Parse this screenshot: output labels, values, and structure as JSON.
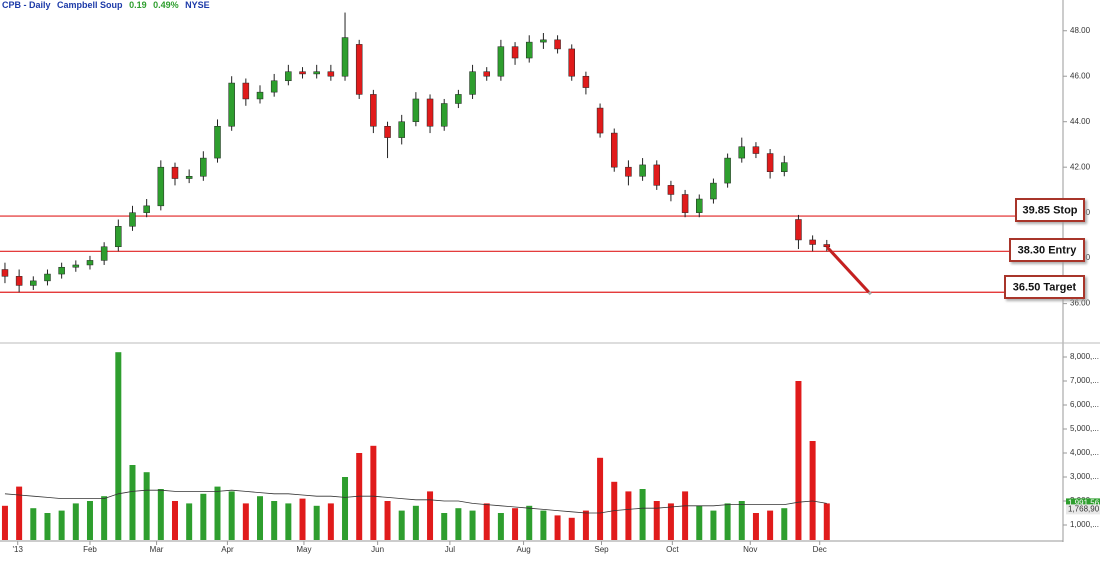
{
  "chart_data": {
    "type": "candlestick",
    "title": {
      "symbol": "CPB - Daily",
      "name": "Campbell Soup",
      "change": "0.19",
      "change_pct": "0.49%",
      "exchange": "NYSE"
    },
    "xlim": [
      -0.35,
      74.6
    ],
    "xticks": [
      {
        "value": 0.9,
        "label": "'13"
      },
      {
        "value": 6,
        "label": "Feb"
      },
      {
        "value": 10.7,
        "label": "Mar"
      },
      {
        "value": 15.7,
        "label": "Apr"
      },
      {
        "value": 21.1,
        "label": "May"
      },
      {
        "value": 26.3,
        "label": "Jun"
      },
      {
        "value": 31.4,
        "label": "Jul"
      },
      {
        "value": 36.6,
        "label": "Aug"
      },
      {
        "value": 42.1,
        "label": "Sep"
      },
      {
        "value": 47.1,
        "label": "Oct"
      },
      {
        "value": 52.6,
        "label": "Nov"
      },
      {
        "value": 57.5,
        "label": "Dec"
      }
    ],
    "ylim": [
      34.4,
      49.0
    ],
    "yticks": [
      {
        "value": 36,
        "label": "36.00"
      },
      {
        "value": 38,
        "label": "38.00"
      },
      {
        "value": 40,
        "label": "40.00"
      },
      {
        "value": 42,
        "label": "42.00"
      },
      {
        "value": 44,
        "label": "44.00"
      },
      {
        "value": 46,
        "label": "46.00"
      },
      {
        "value": 48,
        "label": "48.00"
      }
    ],
    "up_color": "#2e9e2e",
    "down_color": "#e01b1b",
    "open": [
      37.5,
      37.2,
      36.8,
      37.0,
      37.3,
      37.6,
      37.7,
      37.9,
      38.5,
      39.4,
      40.0,
      40.3,
      42.0,
      41.5,
      41.6,
      42.4,
      43.8,
      45.7,
      45.0,
      45.3,
      45.8,
      46.2,
      46.1,
      46.2,
      46.0,
      47.4,
      45.2,
      43.8,
      43.3,
      44.0,
      45.0,
      43.8,
      44.8,
      45.2,
      46.2,
      46.0,
      47.3,
      46.8,
      47.5,
      47.6,
      47.2,
      46.0,
      44.6,
      43.5,
      42.0,
      41.6,
      42.1,
      41.2,
      40.8,
      40.0,
      40.6,
      41.3,
      42.4,
      42.9,
      42.6,
      41.8,
      39.7,
      38.8,
      38.6
    ],
    "high": [
      37.8,
      37.5,
      37.2,
      37.5,
      37.8,
      37.9,
      38.1,
      38.7,
      39.7,
      40.3,
      40.6,
      42.3,
      42.2,
      41.9,
      42.7,
      44.1,
      46.0,
      45.9,
      45.6,
      46.1,
      46.5,
      46.4,
      46.5,
      46.5,
      48.8,
      47.6,
      45.4,
      44.0,
      44.3,
      45.3,
      45.2,
      45.0,
      45.4,
      46.5,
      46.4,
      47.6,
      47.5,
      47.8,
      47.9,
      47.8,
      47.4,
      46.2,
      44.8,
      43.7,
      42.3,
      42.4,
      42.3,
      41.4,
      41.0,
      40.8,
      41.5,
      42.6,
      43.3,
      43.1,
      42.8,
      42.5,
      39.9,
      39.0,
      38.8
    ],
    "low": [
      36.9,
      36.5,
      36.6,
      36.8,
      37.1,
      37.4,
      37.5,
      37.7,
      38.3,
      39.2,
      39.8,
      40.1,
      41.2,
      41.3,
      41.4,
      42.2,
      43.6,
      44.7,
      44.8,
      45.1,
      45.6,
      45.9,
      45.9,
      45.8,
      45.8,
      45.0,
      43.5,
      42.4,
      43.0,
      43.8,
      43.5,
      43.6,
      44.6,
      45.0,
      45.8,
      45.8,
      46.5,
      46.6,
      47.2,
      47.0,
      45.8,
      45.2,
      43.3,
      41.8,
      41.2,
      41.4,
      41.0,
      40.5,
      39.8,
      39.8,
      40.4,
      41.1,
      42.2,
      42.4,
      41.5,
      41.6,
      38.4,
      38.3,
      38.3
    ],
    "close": [
      37.2,
      36.8,
      37.0,
      37.3,
      37.6,
      37.7,
      37.9,
      38.5,
      39.4,
      40.0,
      40.3,
      42.0,
      41.5,
      41.6,
      42.4,
      43.8,
      45.7,
      45.0,
      45.3,
      45.8,
      46.2,
      46.1,
      46.2,
      46.0,
      47.7,
      45.2,
      43.8,
      43.3,
      44.0,
      45.0,
      43.8,
      44.8,
      45.2,
      46.2,
      46.0,
      47.3,
      46.8,
      47.5,
      47.6,
      47.2,
      46.0,
      45.5,
      43.5,
      42.0,
      41.6,
      42.1,
      41.2,
      40.8,
      40.0,
      40.6,
      41.3,
      42.4,
      42.9,
      42.6,
      41.8,
      42.2,
      38.8,
      38.6,
      38.5
    ],
    "levels": [
      {
        "value": 39.85,
        "label": "39.85 Stop"
      },
      {
        "value": 38.3,
        "label": "38.30 Entry"
      },
      {
        "value": 36.5,
        "label": "36.50 Target"
      }
    ],
    "level_color": "#e02020",
    "volume": {
      "ylim": [
        375,
        8500
      ],
      "yticks": [
        {
          "value": 1000,
          "label": "1,000,..."
        },
        {
          "value": 2000,
          "label": "2,000,..."
        },
        {
          "value": 3000,
          "label": "3,000,..."
        },
        {
          "value": 4000,
          "label": "4,000,..."
        },
        {
          "value": 5000,
          "label": "5,000,..."
        },
        {
          "value": 6000,
          "label": "6,000,..."
        },
        {
          "value": 7000,
          "label": "7,000,..."
        },
        {
          "value": 8000,
          "label": "8,000,..."
        }
      ],
      "values": [
        1800,
        2600,
        1700,
        1500,
        1600,
        1900,
        2000,
        2200,
        8200,
        3500,
        3200,
        2500,
        2000,
        1900,
        2300,
        2600,
        2400,
        1900,
        2200,
        2000,
        1900,
        2100,
        1800,
        1900,
        3000,
        4000,
        4300,
        2000,
        1600,
        1800,
        2400,
        1500,
        1700,
        1600,
        1900,
        1500,
        1700,
        1800,
        1600,
        1400,
        1300,
        1600,
        3800,
        2800,
        2400,
        2500,
        2000,
        1900,
        2400,
        1800,
        1600,
        1900,
        2000,
        1500,
        1600,
        1700,
        7000,
        4500,
        1900
      ],
      "ma": [
        2300,
        2250,
        2200,
        2150,
        2100,
        2100,
        2100,
        2100,
        2300,
        2400,
        2450,
        2450,
        2400,
        2400,
        2400,
        2400,
        2450,
        2400,
        2350,
        2300,
        2300,
        2250,
        2200,
        2200,
        2150,
        2200,
        2200,
        2150,
        2100,
        2050,
        2050,
        2000,
        2000,
        1900,
        1850,
        1800,
        1750,
        1700,
        1650,
        1600,
        1550,
        1500,
        1500,
        1600,
        1650,
        1700,
        1700,
        1750,
        1800,
        1800,
        1800,
        1850,
        1850,
        1850,
        1850,
        1850,
        1950,
        2000,
        1900
      ],
      "ma_color": "#333333",
      "last_label": "1,991,56",
      "ma_label": "1,768,90"
    }
  }
}
